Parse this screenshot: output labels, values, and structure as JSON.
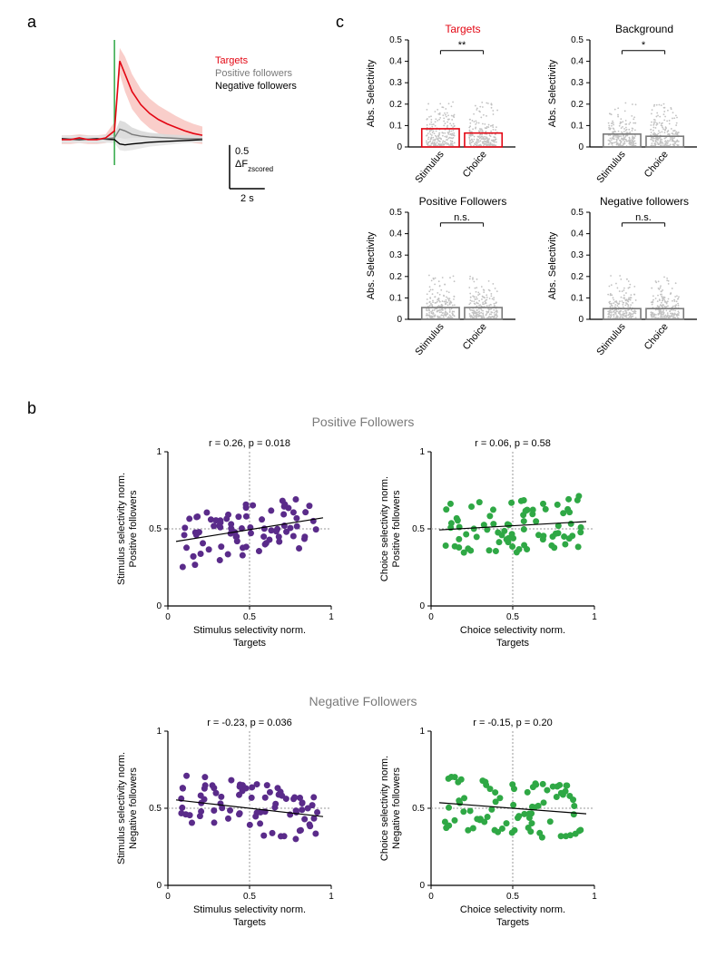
{
  "panel_labels": {
    "a": "a",
    "b": "b",
    "c": "c"
  },
  "panel_a": {
    "legend": [
      "Targets",
      "Positive followers",
      "Negative followers"
    ],
    "legend_colors": [
      "#e30613",
      "#7a7a7a",
      "#000000"
    ],
    "scale_y_label": "ΔF",
    "scale_y_sub": "zscored",
    "scale_y_value": "0.5",
    "scale_x_label": "2 s",
    "traces": {
      "targets": {
        "color": "#e30613",
        "shade_color": "#f8c9c4",
        "x": [
          -3,
          -2.5,
          -2,
          -1.5,
          -1,
          -0.5,
          0,
          0.3,
          0.6,
          1,
          1.5,
          2,
          2.5,
          3,
          3.5,
          4,
          4.5,
          5
        ],
        "y": [
          0,
          0,
          0.02,
          0,
          0,
          0.02,
          0.1,
          0.9,
          0.75,
          0.55,
          0.4,
          0.3,
          0.23,
          0.18,
          0.14,
          0.1,
          0.07,
          0.05
        ],
        "shade_up": [
          0.05,
          0.05,
          0.06,
          0.05,
          0.05,
          0.06,
          0.2,
          1.05,
          0.95,
          0.75,
          0.58,
          0.47,
          0.39,
          0.33,
          0.27,
          0.22,
          0.18,
          0.15
        ],
        "shade_down": [
          -0.05,
          -0.05,
          -0.04,
          -0.05,
          -0.05,
          -0.04,
          0.0,
          0.75,
          0.55,
          0.35,
          0.22,
          0.13,
          0.07,
          0.03,
          0.01,
          -0.02,
          -0.04,
          -0.05
        ]
      },
      "pos": {
        "color": "#7a7a7a",
        "shade_color": "#d9d9d9",
        "x": [
          -3,
          -2,
          -1,
          0,
          0.3,
          0.6,
          1,
          1.5,
          2,
          3,
          4,
          5
        ],
        "y": [
          0,
          0.01,
          0.0,
          0.02,
          0.12,
          0.1,
          0.06,
          0.04,
          0.03,
          0.02,
          0.01,
          0.01
        ],
        "shade_up": [
          0.04,
          0.05,
          0.04,
          0.07,
          0.22,
          0.2,
          0.14,
          0.1,
          0.08,
          0.06,
          0.05,
          0.05
        ],
        "shade_down": [
          -0.04,
          -0.03,
          -0.04,
          -0.03,
          0.02,
          0.0,
          -0.02,
          -0.02,
          -0.02,
          -0.02,
          -0.03,
          -0.03
        ]
      },
      "neg": {
        "color": "#000000",
        "shade_color": "#e6e6e6",
        "x": [
          -3,
          -2,
          -1,
          0,
          0.3,
          0.6,
          1,
          1.5,
          2,
          3,
          4,
          5
        ],
        "y": [
          0.01,
          0,
          0.01,
          0.0,
          -0.05,
          -0.06,
          -0.05,
          -0.04,
          -0.03,
          -0.02,
          -0.01,
          0
        ],
        "shade_up": [
          0.05,
          0.04,
          0.05,
          0.04,
          0.02,
          0.01,
          0.02,
          0.02,
          0.02,
          0.02,
          0.02,
          0.03
        ],
        "shade_down": [
          -0.03,
          -0.04,
          -0.03,
          -0.04,
          -0.12,
          -0.13,
          -0.12,
          -0.1,
          -0.08,
          -0.06,
          -0.04,
          -0.03
        ]
      }
    },
    "stim_line_color": "#2fa845",
    "xrange": [
      -3,
      5
    ],
    "yrange": [
      -0.25,
      1.1
    ],
    "scale_bar_len_x": 2,
    "scale_bar_len_y": 0.5
  },
  "panel_b": {
    "section_titles": [
      "Positive Followers",
      "Negative Followers"
    ],
    "section_title_color": "#7a7a7a",
    "plots": [
      {
        "title_r": "r = 0.26, p = 0.018",
        "xlabel": "Stimulus selectivity norm.\nTargets",
        "ylabel": "Stimulus selectivity norm.\nPositive followers",
        "dot_color": "#5a2b8a",
        "slope": 0.17,
        "intercept": 0.41,
        "seed": 11
      },
      {
        "title_r": "r = 0.06, p = 0.58",
        "xlabel": "Choice selectivity norm.\nTargets",
        "ylabel": "Choice selectivity norm.\nPositive followers",
        "dot_color": "#2fa845",
        "slope": 0.06,
        "intercept": 0.49,
        "seed": 21
      },
      {
        "title_r": "r = -0.23, p = 0.036",
        "xlabel": "Stimulus selectivity norm.\nTargets",
        "ylabel": "Stimulus selectivity norm.\nNegative followers",
        "dot_color": "#5a2b8a",
        "slope": -0.12,
        "intercept": 0.56,
        "seed": 31
      },
      {
        "title_r": "r = -0.15, p = 0.20",
        "xlabel": "Choice selectivity norm.\nTargets",
        "ylabel": "Choice selectivity norm.\nNegative followers",
        "dot_color": "#2fa845",
        "slope": -0.08,
        "intercept": 0.54,
        "seed": 41
      }
    ],
    "axis": {
      "xlim": [
        0,
        1
      ],
      "ylim": [
        0,
        1
      ],
      "ticks": [
        0,
        0.5,
        1
      ],
      "tick_labels": [
        "0",
        "0.5",
        "1"
      ],
      "axis_color": "#000000",
      "grid_dash": "2,2",
      "grid_color": "#9a9a9a"
    },
    "n_points": 80,
    "dot_radius": 3.5,
    "font_size_title": 11,
    "font_size_label": 11,
    "font_size_tick": 10
  },
  "panel_c": {
    "plots": [
      {
        "title": "Targets",
        "title_color": "#e30613",
        "bar_color": "#e30613",
        "sig": "**",
        "values": [
          0.085,
          0.065
        ],
        "seed": 1
      },
      {
        "title": "Background",
        "title_color": "#000000",
        "bar_color": "#7a7a7a",
        "sig": "*",
        "values": [
          0.06,
          0.05
        ],
        "seed": 2
      },
      {
        "title": "Positive Followers",
        "title_color": "#000000",
        "bar_color": "#7a7a7a",
        "sig": "n.s.",
        "values": [
          0.055,
          0.055
        ],
        "seed": 3
      },
      {
        "title": "Negative followers",
        "title_color": "#000000",
        "bar_color": "#7a7a7a",
        "sig": "n.s.",
        "values": [
          0.05,
          0.05
        ],
        "seed": 4
      }
    ],
    "ylabel": "Abs. Selectivity",
    "ylim": [
      0,
      0.5
    ],
    "yticks": [
      0,
      0.1,
      0.2,
      0.3,
      0.4,
      0.5
    ],
    "xlabels": [
      "Stimulus",
      "Choice"
    ],
    "bar_width": 0.42,
    "jitter_color": "#c2c2c2",
    "n_jitter": 220,
    "font_size_title": 12,
    "font_size_label": 11,
    "font_size_tick": 10
  },
  "colors": {
    "bg": "#ffffff",
    "axis": "#000000"
  }
}
